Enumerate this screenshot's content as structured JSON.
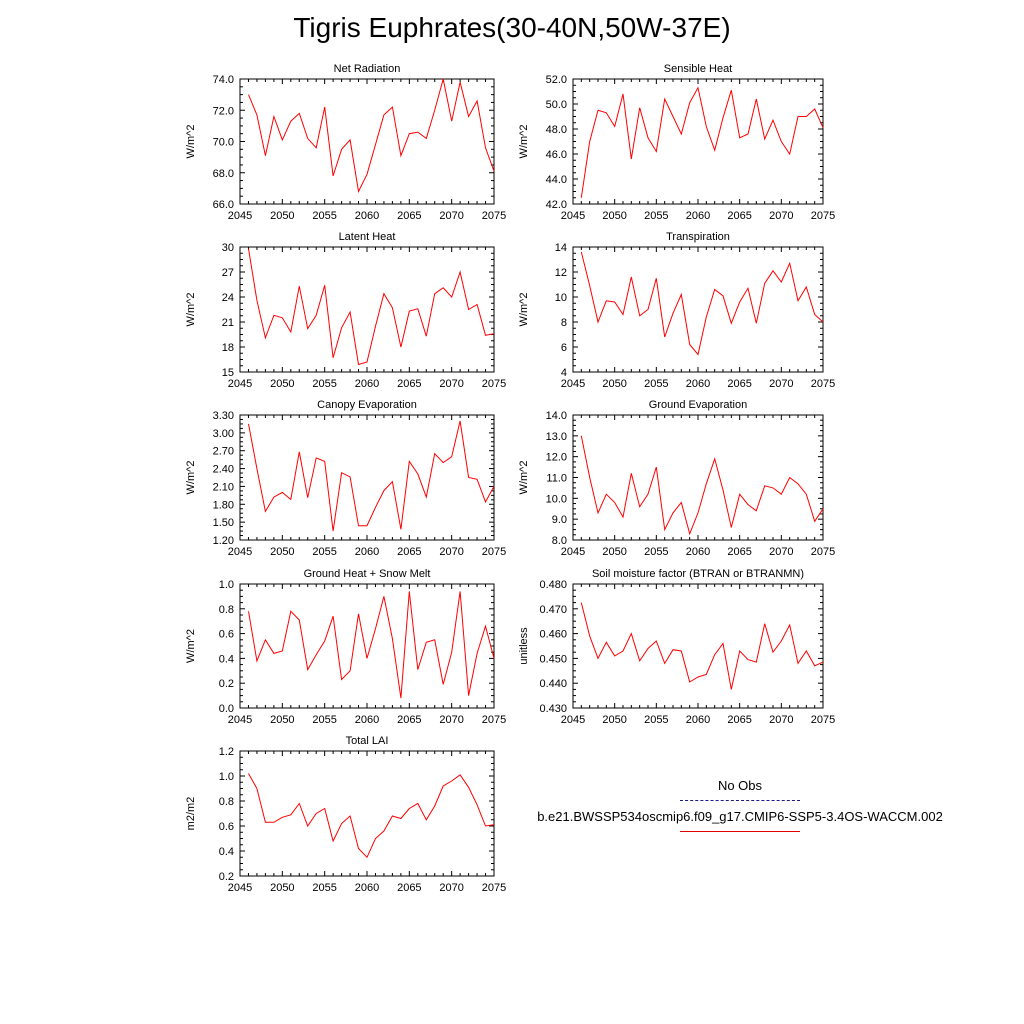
{
  "title": "Tigris Euphrates(30-40N,50W-37E)",
  "colors": {
    "series": "#ff0000",
    "axis": "#000000",
    "obs": "#1a1a8c"
  },
  "legend": {
    "obs_label": "No Obs",
    "model_label": "b.e21.BWSSP534oscmip6.f09_g17.CMIP6-SSP5-3.4OS-WACCM.002"
  },
  "chart_data": [
    {
      "type": "line",
      "title": "Net Radiation",
      "ylabel": "W/m^2",
      "xlim": [
        2045,
        2075
      ],
      "ylim": [
        66,
        74
      ],
      "xticks": [
        2045,
        2050,
        2055,
        2060,
        2065,
        2070,
        2075
      ],
      "yticks": [
        66,
        68,
        70,
        72,
        74
      ],
      "ytick_labels": [
        "66.0",
        "68.0",
        "70.0",
        "72.0",
        "74.0"
      ],
      "x": [
        2046,
        2047,
        2048,
        2049,
        2050,
        2051,
        2052,
        2053,
        2054,
        2055,
        2056,
        2057,
        2058,
        2059,
        2060,
        2061,
        2062,
        2063,
        2064,
        2065,
        2066,
        2067,
        2068,
        2069,
        2070,
        2071,
        2072,
        2073,
        2074,
        2075
      ],
      "values": [
        73.0,
        71.7,
        69.1,
        71.6,
        70.1,
        71.3,
        71.8,
        70.2,
        69.6,
        72.2,
        67.8,
        69.5,
        70.1,
        66.8,
        67.9,
        69.8,
        71.7,
        72.2,
        69.1,
        70.5,
        70.6,
        70.2,
        72.0,
        74.0,
        71.3,
        73.8,
        71.6,
        72.6,
        69.6,
        68.1
      ]
    },
    {
      "type": "line",
      "title": "Sensible Heat",
      "ylabel": "W/m^2",
      "xlim": [
        2045,
        2075
      ],
      "ylim": [
        42,
        52
      ],
      "xticks": [
        2045,
        2050,
        2055,
        2060,
        2065,
        2070,
        2075
      ],
      "yticks": [
        42,
        44,
        46,
        48,
        50,
        52
      ],
      "ytick_labels": [
        "42.0",
        "44.0",
        "46.0",
        "48.0",
        "50.0",
        "52.0"
      ],
      "x": [
        2046,
        2047,
        2048,
        2049,
        2050,
        2051,
        2052,
        2053,
        2054,
        2055,
        2056,
        2057,
        2058,
        2059,
        2060,
        2061,
        2062,
        2063,
        2064,
        2065,
        2066,
        2067,
        2068,
        2069,
        2070,
        2071,
        2072,
        2073,
        2074,
        2075
      ],
      "values": [
        42.5,
        47.0,
        49.5,
        49.3,
        48.2,
        50.8,
        45.6,
        49.7,
        47.3,
        46.2,
        50.4,
        49.0,
        47.6,
        50.1,
        51.3,
        48.2,
        46.3,
        48.9,
        51.1,
        47.3,
        47.6,
        50.4,
        47.2,
        48.7,
        47.0,
        46.0,
        49.0,
        49.0,
        49.6,
        48.1
      ]
    },
    {
      "type": "line",
      "title": "Latent Heat",
      "ylabel": "W/m^2",
      "xlim": [
        2045,
        2075
      ],
      "ylim": [
        15,
        30
      ],
      "xticks": [
        2045,
        2050,
        2055,
        2060,
        2065,
        2070,
        2075
      ],
      "yticks": [
        15,
        18,
        21,
        24,
        27,
        30
      ],
      "ytick_labels": [
        "15",
        "18",
        "21",
        "24",
        "27",
        "30"
      ],
      "x": [
        2046,
        2047,
        2048,
        2049,
        2050,
        2051,
        2052,
        2053,
        2054,
        2055,
        2056,
        2057,
        2058,
        2059,
        2060,
        2061,
        2062,
        2063,
        2064,
        2065,
        2066,
        2067,
        2068,
        2069,
        2070,
        2071,
        2072,
        2073,
        2074,
        2075
      ],
      "values": [
        29.8,
        23.6,
        19.1,
        21.8,
        21.5,
        19.8,
        25.3,
        20.2,
        21.8,
        25.4,
        16.7,
        20.3,
        22.2,
        15.9,
        16.2,
        20.5,
        24.4,
        22.7,
        18.0,
        22.3,
        22.6,
        19.3,
        24.4,
        25.1,
        24.0,
        27.0,
        22.5,
        23.1,
        19.4,
        19.6
      ]
    },
    {
      "type": "line",
      "title": "Transpiration",
      "ylabel": "W/m^2",
      "xlim": [
        2045,
        2075
      ],
      "ylim": [
        4,
        14
      ],
      "xticks": [
        2045,
        2050,
        2055,
        2060,
        2065,
        2070,
        2075
      ],
      "yticks": [
        4,
        6,
        8,
        10,
        12,
        14
      ],
      "ytick_labels": [
        "4",
        "6",
        "8",
        "10",
        "12",
        "14"
      ],
      "x": [
        2046,
        2047,
        2048,
        2049,
        2050,
        2051,
        2052,
        2053,
        2054,
        2055,
        2056,
        2057,
        2058,
        2059,
        2060,
        2061,
        2062,
        2063,
        2064,
        2065,
        2066,
        2067,
        2068,
        2069,
        2070,
        2071,
        2072,
        2073,
        2074,
        2075
      ],
      "values": [
        13.6,
        10.9,
        8.0,
        9.7,
        9.6,
        8.6,
        11.6,
        8.5,
        9.0,
        11.5,
        6.8,
        8.7,
        10.2,
        6.2,
        5.4,
        8.4,
        10.6,
        10.1,
        7.9,
        9.6,
        10.7,
        7.9,
        11.1,
        12.1,
        11.2,
        12.7,
        9.7,
        10.8,
        8.6,
        8.0
      ]
    },
    {
      "type": "line",
      "title": "Canopy Evaporation",
      "ylabel": "W/m^2",
      "xlim": [
        2045,
        2075
      ],
      "ylim": [
        1.2,
        3.3
      ],
      "xticks": [
        2045,
        2050,
        2055,
        2060,
        2065,
        2070,
        2075
      ],
      "yticks": [
        1.2,
        1.5,
        1.8,
        2.1,
        2.4,
        2.7,
        3.0,
        3.3
      ],
      "ytick_labels": [
        "1.20",
        "1.50",
        "1.80",
        "2.10",
        "2.40",
        "2.70",
        "3.00",
        "3.30"
      ],
      "x": [
        2046,
        2047,
        2048,
        2049,
        2050,
        2051,
        2052,
        2053,
        2054,
        2055,
        2056,
        2057,
        2058,
        2059,
        2060,
        2061,
        2062,
        2063,
        2064,
        2065,
        2066,
        2067,
        2068,
        2069,
        2070,
        2071,
        2072,
        2073,
        2074,
        2075
      ],
      "values": [
        3.15,
        2.4,
        1.68,
        1.92,
        2.0,
        1.88,
        2.68,
        1.91,
        2.58,
        2.52,
        1.35,
        2.33,
        2.26,
        1.44,
        1.44,
        1.75,
        2.03,
        2.18,
        1.38,
        2.52,
        2.31,
        1.92,
        2.65,
        2.5,
        2.6,
        3.2,
        2.25,
        2.22,
        1.84,
        2.1
      ]
    },
    {
      "type": "line",
      "title": "Ground Evaporation",
      "ylabel": "W/m^2",
      "xlim": [
        2045,
        2075
      ],
      "ylim": [
        8,
        14
      ],
      "xticks": [
        2045,
        2050,
        2055,
        2060,
        2065,
        2070,
        2075
      ],
      "yticks": [
        8,
        9,
        10,
        11,
        12,
        13,
        14
      ],
      "ytick_labels": [
        "8.0",
        "9.0",
        "10.0",
        "11.0",
        "12.0",
        "13.0",
        "14.0"
      ],
      "x": [
        2046,
        2047,
        2048,
        2049,
        2050,
        2051,
        2052,
        2053,
        2054,
        2055,
        2056,
        2057,
        2058,
        2059,
        2060,
        2061,
        2062,
        2063,
        2064,
        2065,
        2066,
        2067,
        2068,
        2069,
        2070,
        2071,
        2072,
        2073,
        2074,
        2075
      ],
      "values": [
        13.0,
        11.0,
        9.3,
        10.2,
        9.8,
        9.1,
        11.2,
        9.6,
        10.2,
        11.5,
        8.5,
        9.3,
        9.8,
        8.3,
        9.3,
        10.7,
        11.9,
        10.4,
        8.6,
        10.2,
        9.7,
        9.4,
        10.6,
        10.5,
        10.2,
        11.0,
        10.7,
        10.2,
        8.9,
        9.5
      ]
    },
    {
      "type": "line",
      "title": "Ground Heat + Snow Melt",
      "ylabel": "W/m^2",
      "xlim": [
        2045,
        2075
      ],
      "ylim": [
        0.0,
        1.0
      ],
      "xticks": [
        2045,
        2050,
        2055,
        2060,
        2065,
        2070,
        2075
      ],
      "yticks": [
        0.0,
        0.2,
        0.4,
        0.6,
        0.8,
        1.0
      ],
      "ytick_labels": [
        "0.0",
        "0.2",
        "0.4",
        "0.6",
        "0.8",
        "1.0"
      ],
      "x": [
        2046,
        2047,
        2048,
        2049,
        2050,
        2051,
        2052,
        2053,
        2054,
        2055,
        2056,
        2057,
        2058,
        2059,
        2060,
        2061,
        2062,
        2063,
        2064,
        2065,
        2066,
        2067,
        2068,
        2069,
        2070,
        2071,
        2072,
        2073,
        2074,
        2075
      ],
      "values": [
        0.78,
        0.38,
        0.55,
        0.44,
        0.46,
        0.78,
        0.71,
        0.31,
        0.43,
        0.54,
        0.74,
        0.23,
        0.3,
        0.76,
        0.4,
        0.64,
        0.9,
        0.56,
        0.08,
        0.94,
        0.31,
        0.53,
        0.55,
        0.19,
        0.45,
        0.94,
        0.1,
        0.44,
        0.66,
        0.4
      ]
    },
    {
      "type": "line",
      "title": "Soil moisture factor (BTRAN or BTRANMN)",
      "ylabel": "unitless",
      "xlim": [
        2045,
        2075
      ],
      "ylim": [
        0.43,
        0.48
      ],
      "xticks": [
        2045,
        2050,
        2055,
        2060,
        2065,
        2070,
        2075
      ],
      "yticks": [
        0.43,
        0.44,
        0.45,
        0.46,
        0.47,
        0.48
      ],
      "ytick_labels": [
        "0.430",
        "0.440",
        "0.450",
        "0.460",
        "0.470",
        "0.480"
      ],
      "x": [
        2046,
        2047,
        2048,
        2049,
        2050,
        2051,
        2052,
        2053,
        2054,
        2055,
        2056,
        2057,
        2058,
        2059,
        2060,
        2061,
        2062,
        2063,
        2064,
        2065,
        2066,
        2067,
        2068,
        2069,
        2070,
        2071,
        2072,
        2073,
        2074,
        2075
      ],
      "values": [
        0.4725,
        0.459,
        0.45,
        0.4565,
        0.451,
        0.453,
        0.46,
        0.449,
        0.454,
        0.457,
        0.448,
        0.4535,
        0.453,
        0.4405,
        0.4425,
        0.4435,
        0.4515,
        0.456,
        0.4375,
        0.453,
        0.4495,
        0.4485,
        0.464,
        0.4525,
        0.457,
        0.4635,
        0.448,
        0.453,
        0.447,
        0.4485
      ]
    },
    {
      "type": "line",
      "title": "Total LAI",
      "ylabel": "m2/m2",
      "xlim": [
        2045,
        2075
      ],
      "ylim": [
        0.2,
        1.2
      ],
      "xticks": [
        2045,
        2050,
        2055,
        2060,
        2065,
        2070,
        2075
      ],
      "yticks": [
        0.2,
        0.4,
        0.6,
        0.8,
        1.0,
        1.2
      ],
      "ytick_labels": [
        "0.2",
        "0.4",
        "0.6",
        "0.8",
        "1.0",
        "1.2"
      ],
      "x": [
        2046,
        2047,
        2048,
        2049,
        2050,
        2051,
        2052,
        2053,
        2054,
        2055,
        2056,
        2057,
        2058,
        2059,
        2060,
        2061,
        2062,
        2063,
        2064,
        2065,
        2066,
        2067,
        2068,
        2069,
        2070,
        2071,
        2072,
        2073,
        2074,
        2075
      ],
      "values": [
        1.02,
        0.9,
        0.63,
        0.63,
        0.67,
        0.69,
        0.78,
        0.6,
        0.7,
        0.74,
        0.48,
        0.62,
        0.68,
        0.42,
        0.35,
        0.5,
        0.56,
        0.68,
        0.66,
        0.74,
        0.78,
        0.65,
        0.76,
        0.92,
        0.96,
        1.01,
        0.91,
        0.77,
        0.6,
        0.61
      ]
    }
  ]
}
